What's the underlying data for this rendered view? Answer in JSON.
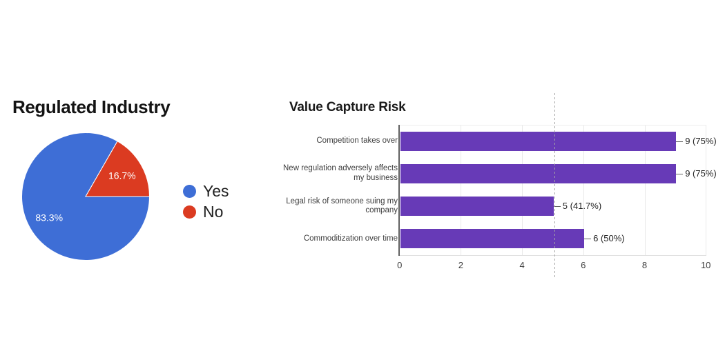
{
  "page": {
    "background_color": "#ffffff"
  },
  "chart_data": [
    {
      "type": "pie",
      "title": "Regulated Industry",
      "labels": [
        "Yes",
        "No"
      ],
      "values": [
        83.3,
        16.7
      ],
      "value_labels": [
        "83.3%",
        "16.7%"
      ],
      "colors": [
        "#3e6ed6",
        "#db3b21"
      ],
      "label_color": "#ffffff",
      "legend_position": "right",
      "start_angle_deg": 90
    },
    {
      "type": "bar",
      "orientation": "horizontal",
      "title": "Value Capture Risk",
      "categories": [
        "Competition takes over",
        "New regulation adversely affects my business",
        "Legal risk of someone suing my company",
        "Commoditization over time"
      ],
      "category_lines": [
        [
          "Competition takes over"
        ],
        [
          "New regulation adversely affects",
          "my business"
        ],
        [
          "Legal risk of someone suing my",
          "company"
        ],
        [
          "Commoditization over time"
        ]
      ],
      "values": [
        9,
        9,
        5,
        6
      ],
      "value_labels": [
        "9 (75%)",
        "9 (75%)",
        "5 (41.7%)",
        "6 (50%)"
      ],
      "bar_color": "#673ab7",
      "xlim": [
        0,
        10
      ],
      "x_ticks": [
        0,
        2,
        4,
        6,
        8,
        10
      ],
      "reference_line_x": 5.06,
      "grid": true
    }
  ]
}
